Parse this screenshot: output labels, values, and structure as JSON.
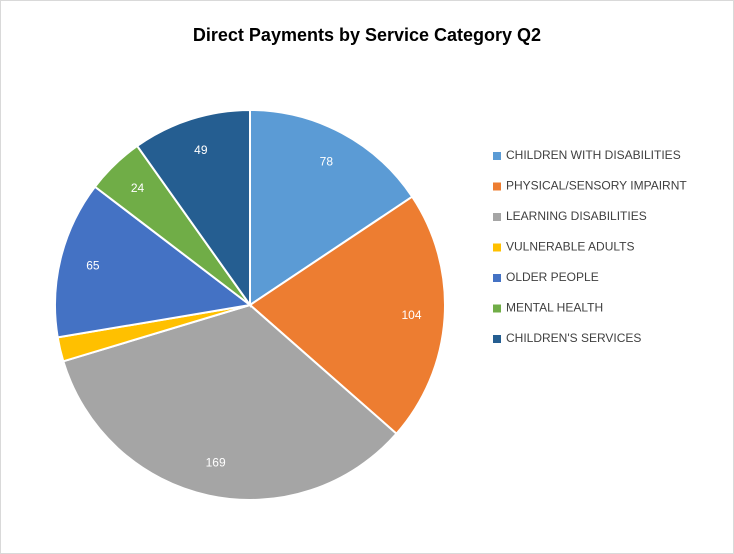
{
  "chart_data": {
    "type": "pie",
    "title": "Direct Payments by Service Category Q2",
    "categories": [
      "CHILDREN WITH DISABILITIES",
      "PHYSICAL/SENSORY IMPAIRNT",
      "LEARNING DISABILITIES",
      "VULNERABLE ADULTS",
      "OLDER PEOPLE",
      "MENTAL HEALTH",
      "CHILDREN'S SERVICES"
    ],
    "values": [
      78,
      104,
      169,
      10,
      65,
      24,
      49
    ],
    "value_labels": [
      "78",
      "104",
      "169",
      null,
      "65",
      "24",
      "49"
    ],
    "colors": [
      "#5b9bd5",
      "#ed7d31",
      "#a5a5a5",
      "#ffc000",
      "#4472c4",
      "#70ad47",
      "#255e91"
    ],
    "legend": "right"
  }
}
